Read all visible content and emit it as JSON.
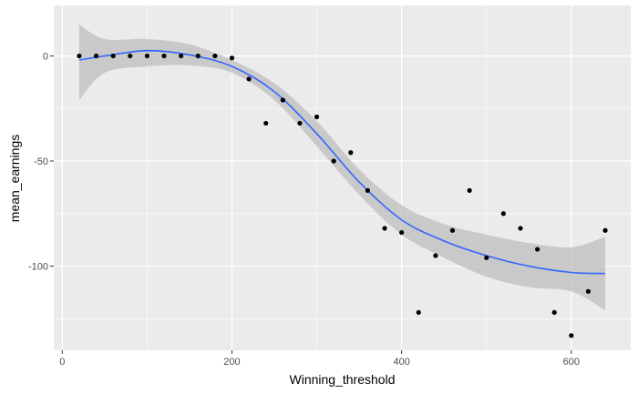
{
  "chart_data": {
    "type": "scatter",
    "xlabel": "Winning_threshold",
    "ylabel": "mean_earnings",
    "xlim": [
      -10,
      670
    ],
    "ylim": [
      -140,
      24
    ],
    "x_ticks": [
      0,
      200,
      400,
      600
    ],
    "x_tick_labels": [
      "0",
      "200",
      "400",
      "600"
    ],
    "y_ticks": [
      0,
      -50,
      -100
    ],
    "y_tick_labels": [
      "0",
      "-50",
      "-100"
    ],
    "grid": true,
    "background": "#ebebeb",
    "grid_color": "#ffffff",
    "point_color": "#000000",
    "smooth_color": "#3366ff",
    "band_color": "#bebebe",
    "points": {
      "x": [
        20,
        40,
        60,
        80,
        100,
        120,
        140,
        160,
        180,
        200,
        220,
        240,
        260,
        280,
        300,
        320,
        340,
        360,
        380,
        400,
        420,
        440,
        460,
        480,
        500,
        520,
        540,
        560,
        580,
        600,
        620,
        640
      ],
      "y": [
        0,
        0,
        0,
        0,
        0,
        0,
        0,
        0,
        0,
        -1,
        -11,
        -32,
        -21,
        -32,
        -29,
        -50,
        -46,
        -64,
        -82,
        -84,
        -122,
        -95,
        -83,
        -64,
        -96,
        -75,
        -82,
        -92,
        -122,
        -133,
        -112,
        -83
      ]
    },
    "smooth": {
      "x": [
        20,
        50,
        100,
        150,
        200,
        250,
        300,
        350,
        400,
        450,
        500,
        550,
        600,
        640
      ],
      "y": [
        -2,
        0,
        2.5,
        0.5,
        -5,
        -17,
        -37,
        -60,
        -78,
        -88,
        -95,
        -100,
        -103,
        -103.5
      ],
      "lower": [
        -21,
        -8,
        -5,
        -4.5,
        -8,
        -21,
        -43,
        -66,
        -85,
        -96,
        -105,
        -110,
        -112,
        -121
      ],
      "upper": [
        15,
        8,
        8,
        5.5,
        -2,
        -13,
        -31,
        -54,
        -71,
        -80,
        -85,
        -89,
        -91,
        -86
      ]
    }
  }
}
